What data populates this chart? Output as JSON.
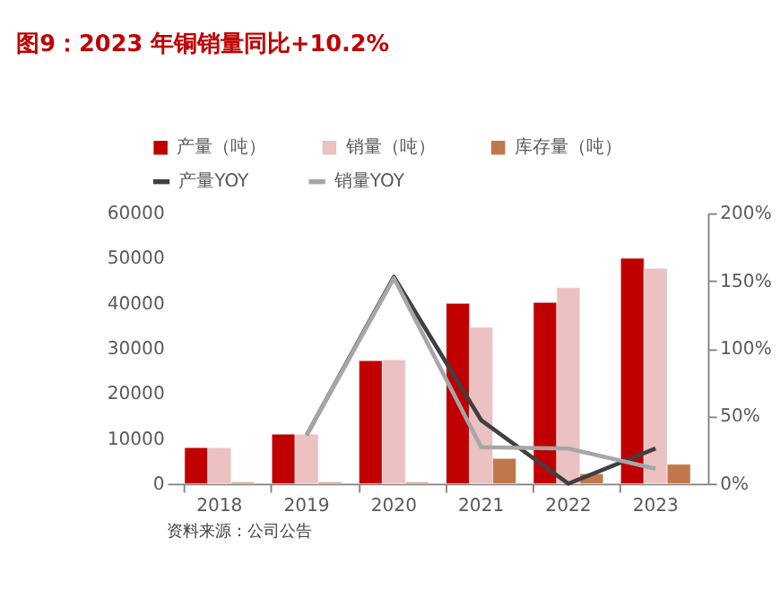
{
  "chart_data": {
    "type": "bar",
    "title": "图9：2023 年铜销量同比+10.2%",
    "categories": [
      "2018",
      "2019",
      "2020",
      "2021",
      "2022",
      "2023"
    ],
    "series": [
      {
        "name": "产量（吨）",
        "color": "#c00000",
        "values": [
          8000,
          11000,
          27300,
          40000,
          40200,
          50000
        ]
      },
      {
        "name": "销量（吨）",
        "color": "#ebc1c1",
        "values": [
          8000,
          11000,
          27500,
          34700,
          43500,
          47800
        ]
      },
      {
        "name": "库存量（吨）",
        "color": "#c0784a",
        "values": [
          300,
          300,
          300,
          5600,
          2200,
          4300
        ]
      },
      {
        "name": "产量YOY",
        "type": "line",
        "axis": "y2",
        "color": "#404040",
        "values": [
          null,
          36,
          153,
          47,
          0,
          26
        ]
      },
      {
        "name": "销量YOY",
        "type": "line",
        "axis": "y2",
        "color": "#a6a6a6",
        "values": [
          null,
          36,
          152,
          27,
          26,
          11
        ]
      }
    ],
    "ylim": [
      0,
      60000
    ],
    "yticks": [
      0,
      10000,
      20000,
      30000,
      40000,
      50000,
      60000
    ],
    "y2lim": [
      0,
      200
    ],
    "y2ticks": [
      {
        "value": 0,
        "label": "0%"
      },
      {
        "value": 50,
        "label": "50%"
      },
      {
        "value": 100,
        "label": "100%"
      },
      {
        "value": 150,
        "label": "150%"
      },
      {
        "value": 200,
        "label": "200%"
      }
    ],
    "legend": "top",
    "grid": false,
    "annotations": [
      "资料来源：公司公告"
    ]
  }
}
